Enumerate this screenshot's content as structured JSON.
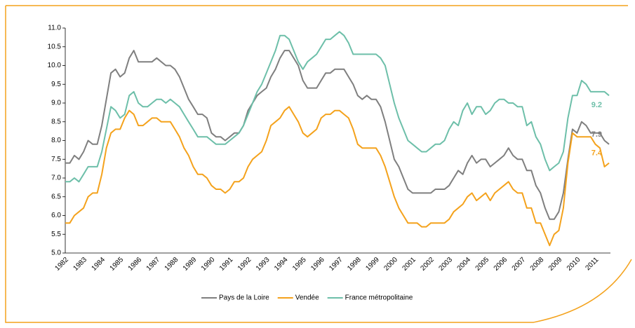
{
  "chart_data": {
    "type": "line",
    "categories": [
      "1982",
      null,
      null,
      null,
      "1983",
      null,
      null,
      null,
      "1984",
      null,
      null,
      null,
      "1985",
      null,
      null,
      null,
      "1986",
      null,
      null,
      null,
      "1987",
      null,
      null,
      null,
      "1988",
      null,
      null,
      null,
      "1989",
      null,
      null,
      null,
      "1990",
      null,
      null,
      null,
      "1991",
      null,
      null,
      null,
      "1992",
      null,
      null,
      null,
      "1993",
      null,
      null,
      null,
      "1994",
      null,
      null,
      null,
      "1995",
      null,
      null,
      null,
      "1996",
      null,
      null,
      null,
      "1997",
      null,
      null,
      null,
      "1998",
      null,
      null,
      null,
      "1999",
      null,
      null,
      null,
      "2000",
      null,
      null,
      null,
      "2001",
      null,
      null,
      null,
      "2002",
      null,
      null,
      null,
      "2003",
      null,
      null,
      null,
      "2004",
      null,
      null,
      null,
      "2005",
      null,
      null,
      null,
      "2006",
      null,
      null,
      null,
      "2007",
      null,
      null,
      null,
      "2008",
      null,
      null,
      null,
      "2009",
      null,
      null,
      null,
      "2010",
      null,
      null,
      null,
      "2011",
      null,
      null,
      null
    ],
    "series": [
      {
        "name": "Pays de la Loire",
        "color": "#7f7f7f",
        "values": [
          7.4,
          7.4,
          7.6,
          7.5,
          7.7,
          8.0,
          7.9,
          7.9,
          8.4,
          9.1,
          9.8,
          9.9,
          9.7,
          9.8,
          10.2,
          10.4,
          10.1,
          10.1,
          10.1,
          10.1,
          10.2,
          10.1,
          10.0,
          10.0,
          9.9,
          9.7,
          9.4,
          9.1,
          8.9,
          8.7,
          8.7,
          8.6,
          8.2,
          8.1,
          8.1,
          8.0,
          8.1,
          8.2,
          8.2,
          8.4,
          8.8,
          9.0,
          9.2,
          9.3,
          9.4,
          9.7,
          9.9,
          10.2,
          10.4,
          10.4,
          10.2,
          10.0,
          9.6,
          9.4,
          9.4,
          9.4,
          9.6,
          9.8,
          9.8,
          9.9,
          9.9,
          9.9,
          9.7,
          9.5,
          9.2,
          9.1,
          9.2,
          9.1,
          9.1,
          8.9,
          8.5,
          8.0,
          7.5,
          7.3,
          7.0,
          6.7,
          6.6,
          6.6,
          6.6,
          6.6,
          6.6,
          6.7,
          6.7,
          6.7,
          6.8,
          7.0,
          7.2,
          7.1,
          7.4,
          7.6,
          7.4,
          7.5,
          7.5,
          7.3,
          7.4,
          7.5,
          7.6,
          7.8,
          7.6,
          7.5,
          7.5,
          7.2,
          7.2,
          6.8,
          6.6,
          6.2,
          5.9,
          5.9,
          6.1,
          6.6,
          7.5,
          8.3,
          8.2,
          8.5,
          8.4,
          8.2,
          8.2,
          8.2,
          8.0,
          7.9
        ]
      },
      {
        "name": "Vendée",
        "color": "#f4a21c",
        "values": [
          5.8,
          5.8,
          6.0,
          6.1,
          6.2,
          6.5,
          6.6,
          6.6,
          7.1,
          7.8,
          8.2,
          8.3,
          8.3,
          8.6,
          8.8,
          8.7,
          8.4,
          8.4,
          8.5,
          8.6,
          8.6,
          8.5,
          8.5,
          8.5,
          8.3,
          8.1,
          7.8,
          7.6,
          7.3,
          7.1,
          7.1,
          7.0,
          6.8,
          6.7,
          6.7,
          6.6,
          6.7,
          6.9,
          6.9,
          7.0,
          7.3,
          7.5,
          7.6,
          7.7,
          8.0,
          8.4,
          8.5,
          8.6,
          8.8,
          8.9,
          8.7,
          8.5,
          8.2,
          8.1,
          8.2,
          8.3,
          8.6,
          8.7,
          8.7,
          8.8,
          8.8,
          8.7,
          8.6,
          8.3,
          7.9,
          7.8,
          7.8,
          7.8,
          7.8,
          7.6,
          7.3,
          6.9,
          6.5,
          6.2,
          6.0,
          5.8,
          5.8,
          5.8,
          5.7,
          5.7,
          5.8,
          5.8,
          5.8,
          5.8,
          5.9,
          6.1,
          6.2,
          6.3,
          6.5,
          6.6,
          6.4,
          6.5,
          6.6,
          6.4,
          6.6,
          6.7,
          6.8,
          6.9,
          6.7,
          6.6,
          6.6,
          6.2,
          6.2,
          5.8,
          5.8,
          5.5,
          5.2,
          5.5,
          5.6,
          6.2,
          7.4,
          8.2,
          8.1,
          8.1,
          8.1,
          8.1,
          7.9,
          7.8,
          7.3,
          7.4
        ]
      },
      {
        "name": "France métropolitaine",
        "color": "#6dbfa9",
        "values": [
          6.9,
          6.9,
          7.0,
          6.9,
          7.1,
          7.3,
          7.3,
          7.3,
          7.7,
          8.3,
          8.9,
          8.8,
          8.6,
          8.7,
          9.2,
          9.3,
          9.0,
          8.9,
          8.9,
          9.0,
          9.1,
          9.1,
          9.0,
          9.1,
          9.0,
          8.9,
          8.7,
          8.5,
          8.3,
          8.1,
          8.1,
          8.1,
          8.0,
          7.9,
          7.9,
          7.9,
          8.0,
          8.1,
          8.2,
          8.4,
          8.7,
          9.0,
          9.3,
          9.5,
          9.8,
          10.1,
          10.4,
          10.8,
          10.8,
          10.7,
          10.4,
          10.1,
          9.9,
          10.1,
          10.2,
          10.3,
          10.5,
          10.7,
          10.7,
          10.8,
          10.9,
          10.8,
          10.6,
          10.3,
          10.3,
          10.3,
          10.3,
          10.3,
          10.3,
          10.2,
          10.0,
          9.5,
          9.0,
          8.6,
          8.3,
          8.0,
          7.9,
          7.8,
          7.7,
          7.7,
          7.8,
          7.9,
          7.9,
          8.0,
          8.3,
          8.5,
          8.4,
          8.8,
          9.0,
          8.7,
          8.9,
          8.9,
          8.7,
          8.8,
          9.0,
          9.1,
          9.1,
          9.0,
          9.0,
          8.9,
          8.9,
          8.4,
          8.5,
          8.1,
          7.9,
          7.5,
          7.2,
          7.3,
          7.4,
          7.7,
          8.6,
          9.2,
          9.2,
          9.6,
          9.5,
          9.3,
          9.3,
          9.3,
          9.3,
          9.2
        ]
      }
    ],
    "ylim": [
      5.0,
      11.0
    ],
    "yticks": [
      {
        "value": 5,
        "label": "5.0"
      },
      5.5,
      {
        "value": 6,
        "label": "6.0"
      },
      6.5,
      {
        "value": 7,
        "label": "7.0"
      },
      7.5,
      {
        "value": 8,
        "label": "8.0"
      },
      8.5,
      {
        "value": 9,
        "label": "9.0"
      },
      9.5,
      {
        "value": 10,
        "label": "10.0"
      },
      10.5,
      {
        "value": 11,
        "label": "11.0"
      }
    ],
    "grid": false,
    "legend": "bottom"
  }
}
